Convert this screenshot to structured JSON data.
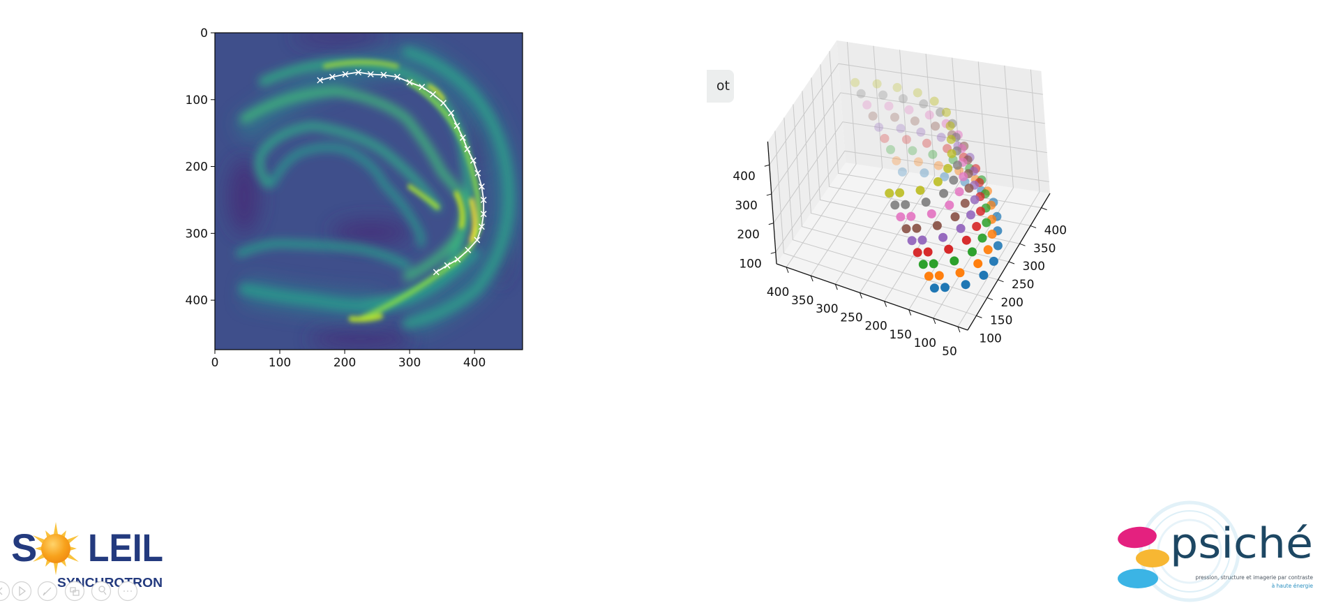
{
  "toolbar": {
    "partial_button_label": "ot"
  },
  "logos": {
    "soleil_text": "SOLEIL",
    "soleil_subtitle": "SYNCHROTRON",
    "psiche_text": "psiché",
    "psiche_tagline_1": "pression, structure et imagerie par contraste",
    "psiche_tagline_2": "à haute énergie"
  },
  "slide_controls": [
    {
      "icon": "previous-icon"
    },
    {
      "icon": "play-icon"
    },
    {
      "icon": "pen-icon"
    },
    {
      "icon": "slides-icon"
    },
    {
      "icon": "zoom-icon"
    },
    {
      "icon": "more-icon"
    }
  ],
  "chart_data": [
    {
      "type": "heatmap",
      "colormap": "viridis",
      "xlim": [
        0,
        474
      ],
      "ylim": [
        474,
        0
      ],
      "xticks": [
        0,
        100,
        200,
        300,
        400
      ],
      "yticks": [
        0,
        100,
        200,
        300,
        400
      ],
      "grid": false,
      "overlay": {
        "type": "line",
        "marker": "x",
        "color": "#ffffff",
        "x": [
          162,
          181,
          201,
          221,
          240,
          260,
          281,
          300,
          319,
          336,
          352,
          364,
          373,
          382,
          389,
          398,
          405,
          411,
          414,
          414,
          411,
          404,
          390,
          374,
          358,
          341
        ],
        "y": [
          71,
          66,
          62,
          59,
          62,
          63,
          66,
          74,
          81,
          92,
          105,
          120,
          139,
          157,
          174,
          191,
          210,
          230,
          250,
          271,
          290,
          310,
          325,
          339,
          348,
          358
        ]
      }
    },
    {
      "type": "scatter3d",
      "xlim": [
        30,
        420
      ],
      "ylim": [
        60,
        440
      ],
      "zlim": [
        60,
        480
      ],
      "xticks": [
        400,
        350,
        300,
        250,
        200,
        150,
        100,
        50
      ],
      "yticks": [
        100,
        150,
        200,
        250,
        300,
        350,
        400
      ],
      "zticks": [
        100,
        200,
        300,
        400
      ],
      "grid": true,
      "series": [
        {
          "color": "#1f77b4",
          "z": 150,
          "x": [
            278,
            239,
            200,
            159,
            121,
            88,
            67,
            51,
            35,
            26,
            29,
            50,
            82,
            99
          ]
        },
        {
          "color": "#ff7f0e",
          "z": 185,
          "x": [
            288,
            249,
            210,
            169,
            131,
            98,
            77,
            61,
            45,
            36,
            39,
            60,
            92,
            109
          ]
        },
        {
          "color": "#2ca02c",
          "z": 220,
          "x": [
            298,
            259,
            220,
            179,
            141,
            108,
            87,
            71,
            55,
            46,
            49,
            70,
            102,
            119
          ]
        },
        {
          "color": "#d62728",
          "z": 255,
          "x": [
            308,
            269,
            230,
            189,
            151,
            118,
            97,
            81,
            65,
            56,
            59,
            80,
            112,
            129
          ]
        },
        {
          "color": "#9467bd",
          "z": 290,
          "x": [
            318,
            279,
            240,
            199,
            161,
            128,
            107,
            91,
            75,
            66,
            69,
            90,
            122,
            139
          ]
        },
        {
          "color": "#8c564b",
          "z": 325,
          "x": [
            328,
            289,
            250,
            209,
            171,
            138,
            117,
            101,
            85,
            76,
            79,
            100,
            132,
            149
          ]
        },
        {
          "color": "#e377c2",
          "z": 360,
          "x": [
            338,
            299,
            260,
            219,
            181,
            148,
            127,
            111,
            95,
            86,
            89,
            110,
            142,
            159
          ]
        },
        {
          "color": "#7f7f7f",
          "z": 395,
          "x": [
            348,
            309,
            270,
            229,
            191,
            158,
            137,
            121,
            105,
            96,
            99,
            120,
            152,
            169
          ]
        },
        {
          "color": "#bcbd22",
          "z": 430,
          "x": [
            358,
            319,
            280,
            239,
            201,
            168,
            147,
            131,
            115,
            106,
            109,
            130,
            162,
            179
          ]
        }
      ],
      "series_y": [
        359,
        368,
        368,
        364,
        349,
        325,
        291,
        256,
        220,
        180,
        140,
        105,
        82,
        72
      ]
    }
  ]
}
